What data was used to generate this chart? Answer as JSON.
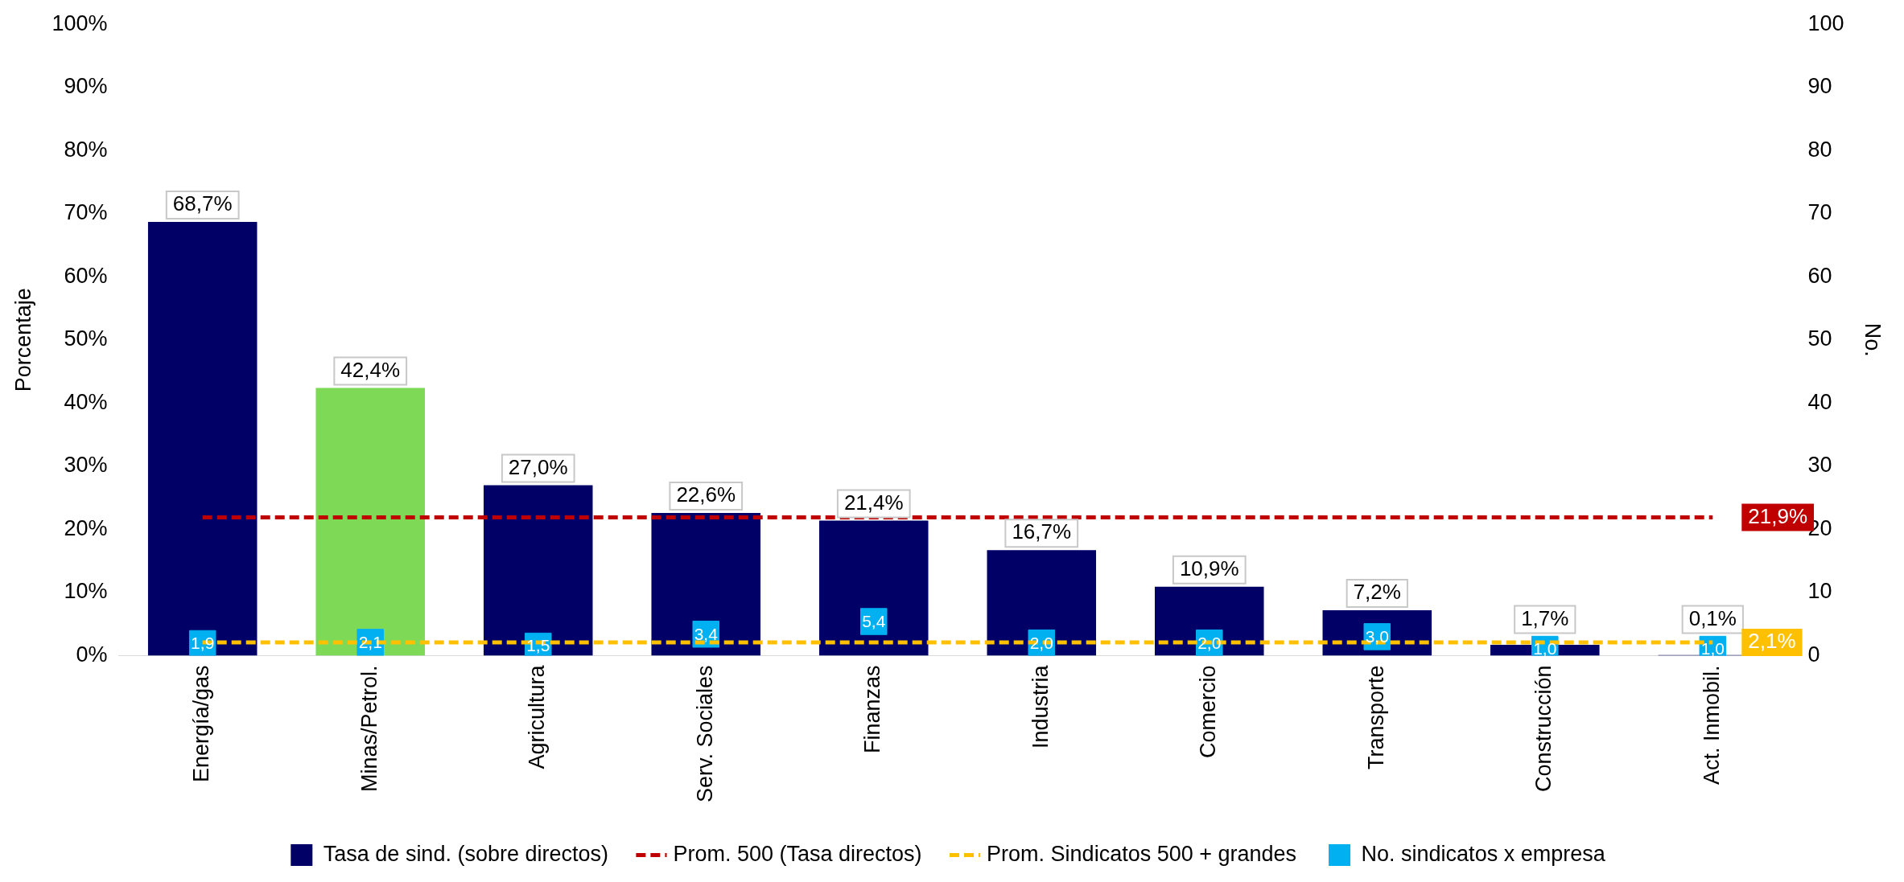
{
  "chart_data": {
    "type": "bar",
    "ylabel": "Porcentaje",
    "y2label": "No.",
    "categories": [
      "Energía/gas",
      "Minas/Petrol.",
      "Agricultura",
      "Serv. Sociales",
      "Finanzas",
      "Industria",
      "Comercio",
      "Transporte",
      "Construcción",
      "Act. Inmobil."
    ],
    "ylim": [
      0,
      100
    ],
    "yticks": [
      {
        "value": 0,
        "label": "0%"
      },
      {
        "value": 10,
        "label": "10%"
      },
      {
        "value": 20,
        "label": "20%"
      },
      {
        "value": 30,
        "label": "30%"
      },
      {
        "value": 40,
        "label": "40%"
      },
      {
        "value": 50,
        "label": "50%"
      },
      {
        "value": 60,
        "label": "60%"
      },
      {
        "value": 70,
        "label": "70%"
      },
      {
        "value": 80,
        "label": "80%"
      },
      {
        "value": 90,
        "label": "90%"
      },
      {
        "value": 100,
        "label": "100%"
      }
    ],
    "y2lim": [
      0,
      100
    ],
    "y2ticks": [
      0,
      10,
      20,
      30,
      40,
      50,
      60,
      70,
      80,
      90,
      100
    ],
    "grid": false,
    "legend": "bottom",
    "series": [
      {
        "type": "bar",
        "name": "Tasa de sind. (sobre directos)",
        "color": "#000066",
        "colors": [
          "#000066",
          "#7ed957",
          "#000066",
          "#000066",
          "#000066",
          "#000066",
          "#000066",
          "#000066",
          "#000066",
          "#000066"
        ],
        "values": [
          68.7,
          42.4,
          27.0,
          22.6,
          21.4,
          16.7,
          10.9,
          7.2,
          1.7,
          0.1
        ],
        "value_labels": [
          "68,7%",
          "42,4%",
          "27,0%",
          "22,6%",
          "21,4%",
          "16,7%",
          "10,9%",
          "7,2%",
          "1,7%",
          "0,1%"
        ]
      },
      {
        "type": "line",
        "name": "Prom. 500 (Tasa directos)",
        "color": "#c00000",
        "line_style": "dashed",
        "marker": "none",
        "values": [
          21.9,
          21.9,
          21.9,
          21.9,
          21.9,
          21.9,
          21.9,
          21.9,
          21.9,
          21.9
        ],
        "value_labels": [
          null,
          null,
          null,
          null,
          null,
          null,
          null,
          null,
          null,
          "21,9%"
        ]
      },
      {
        "type": "line",
        "name": "Prom. Sindicatos 500 + grandes",
        "color": "#ffc000",
        "line_style": "dashed",
        "marker": "none",
        "values": [
          2.1,
          2.1,
          2.1,
          2.1,
          2.1,
          2.1,
          2.1,
          2.1,
          2.1,
          2.1
        ],
        "value_labels": [
          null,
          null,
          null,
          null,
          null,
          null,
          null,
          null,
          null,
          "2,1%"
        ]
      },
      {
        "type": "scatter",
        "name": "No. sindicatos x empresa",
        "color": "#00b0f0",
        "axis": "y2",
        "marker": "square",
        "values": [
          1.9,
          2.1,
          1.5,
          3.4,
          5.4,
          2.0,
          2.0,
          3.0,
          1.0,
          1.0
        ],
        "value_labels": [
          "1,9",
          "2,1",
          "1,5",
          "3,4",
          "5,4",
          "2,0",
          "2,0",
          "3,0",
          "1,0",
          "1,0"
        ]
      }
    ]
  }
}
